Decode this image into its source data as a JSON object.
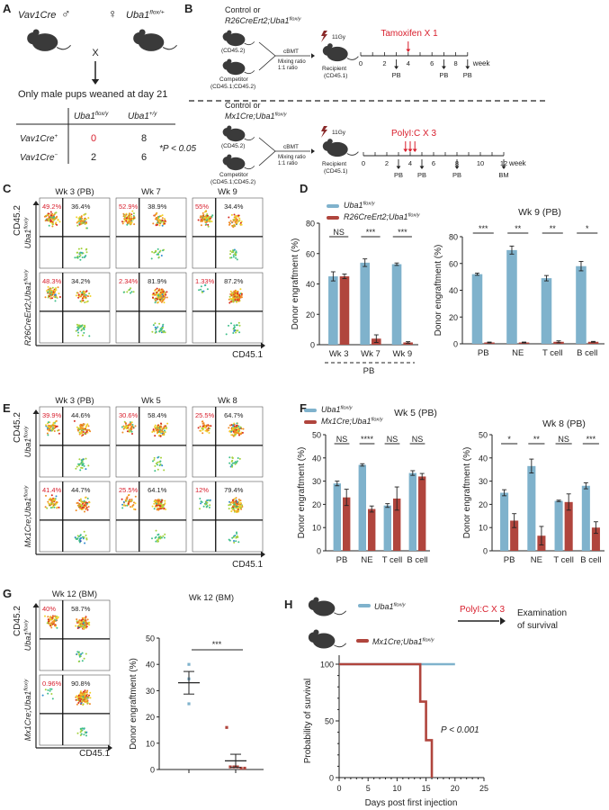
{
  "colors": {
    "control": "#7fb2cc",
    "mutant": "#b0453d",
    "highlight": "#d81e2c",
    "mouse": "#3a3a3a"
  },
  "panel_letters": [
    "A",
    "B",
    "C",
    "D",
    "E",
    "F",
    "G",
    "H"
  ],
  "panelA": {
    "male": {
      "base": "Vav1Cre",
      "sup": ""
    },
    "male_symbol": "♂",
    "female_symbol": "♀",
    "female": {
      "base": "Uba1",
      "sup": "flox/+"
    },
    "cross": "X",
    "note": "Only male pups weaned at day 21",
    "col_headers": [
      {
        "base": "Uba1",
        "sup": "flox/y"
      },
      {
        "base": "Uba1",
        "sup": "+/y"
      }
    ],
    "row_headers": [
      {
        "base": "Vav1Cre",
        "sup": "+"
      },
      {
        "base": "Vav1Cre",
        "sup": "−"
      }
    ],
    "cells": [
      [
        "0",
        "8"
      ],
      [
        "2",
        "6"
      ]
    ],
    "pvalue": "*P < 0.05"
  },
  "panelB": {
    "top": {
      "line1": "Control or",
      "genotype": {
        "base": "R26CreErt2;Uba1",
        "sup": "flox/y"
      },
      "donor": "(CD45.2)",
      "competitor": "Competitor",
      "competitor_cd": "(CD45.1;CD45.2)",
      "cbmt": "cBMT",
      "mixing1": "Mixing ratio",
      "mixing2": "1:1 ratio",
      "irradiation": "11Gy",
      "recipient": "Recipient",
      "recipient_cd": "(CD45.1)",
      "treatment": "Tamoxifen X 1",
      "tick_labels": [
        "0",
        "2",
        "4",
        "6",
        "8"
      ],
      "unit": "week",
      "sample_labels": [
        "PB",
        "PB",
        "PB"
      ]
    },
    "bottom": {
      "line1": "Control or",
      "genotype": {
        "base": "Mx1Cre;Uba1",
        "sup": "flox/y"
      },
      "donor": "(CD45.2)",
      "competitor": "Competitor",
      "competitor_cd": "(CD45.1;CD45.2)",
      "cbmt": "cBMT",
      "mixing1": "Mixing ratio",
      "mixing2": "1:1 ratio",
      "irradiation": "11Gy",
      "recipient": "Recipient",
      "recipient_cd": "(CD45.1)",
      "treatment": "PolyI:C X 3",
      "tick_labels": [
        "0",
        "2",
        "4",
        "6",
        "8",
        "10",
        "12"
      ],
      "unit": "week",
      "sample_labels": [
        "PB",
        "PB",
        "PB",
        "BM"
      ]
    }
  },
  "flow": {
    "y_axis": "CD45.2",
    "x_axis": "CD45.1",
    "C": {
      "columns": [
        "Wk 3 (PB)",
        "Wk 7",
        "Wk 9"
      ],
      "rows": [
        {
          "label": {
            "base": "Uba1",
            "sup": "flox/y"
          },
          "plots": [
            [
              "49.2%",
              "36.4%"
            ],
            [
              "52.9%",
              "38.9%"
            ],
            [
              "55%",
              "34.4%"
            ]
          ]
        },
        {
          "label": {
            "base": "R26CreErt2;Uba1",
            "sup": "flox/y"
          },
          "plots": [
            [
              "48.3%",
              "34.2%"
            ],
            [
              "2.34%",
              "81.9%"
            ],
            [
              "1.33%",
              "87.2%"
            ]
          ]
        }
      ]
    },
    "E": {
      "columns": [
        "Wk 3 (PB)",
        "Wk 5",
        "Wk 8"
      ],
      "rows": [
        {
          "label": {
            "base": "Uba1",
            "sup": "flox/y"
          },
          "plots": [
            [
              "39.9%",
              "44.6%"
            ],
            [
              "30.6%",
              "58.4%"
            ],
            [
              "25.5%",
              "64.7%"
            ]
          ]
        },
        {
          "label": {
            "base": "Mx1Cre;Uba1",
            "sup": "flox/y"
          },
          "plots": [
            [
              "41.4%",
              "44.7%"
            ],
            [
              "25.5%",
              "64.1%"
            ],
            [
              "12%",
              "79.4%"
            ]
          ]
        }
      ]
    },
    "G": {
      "columns": [
        "Wk 12 (BM)"
      ],
      "rows": [
        {
          "label": {
            "base": "Uba1",
            "sup": "flox/y"
          },
          "plots": [
            [
              "40%",
              "58.7%"
            ]
          ]
        },
        {
          "label": {
            "base": "Mx1Cre;Uba1",
            "sup": "flox/y"
          },
          "plots": [
            [
              "0.96%",
              "90.8%"
            ]
          ]
        }
      ]
    }
  },
  "chart_data": [
    {
      "id": "D-left",
      "type": "bar",
      "title": "",
      "legend": [
        {
          "base": "Uba1",
          "sup": "flox/y"
        },
        {
          "base": "R26CreErt2;Uba1",
          "sup": "flox/y"
        }
      ],
      "categories": [
        "Wk 3",
        "Wk 7",
        "Wk 9"
      ],
      "group_label": "PB",
      "series": [
        {
          "name": "Uba1 flox/y",
          "values": [
            45,
            54,
            53
          ],
          "sem": [
            3,
            2.5,
            0.8
          ]
        },
        {
          "name": "R26CreErt2;Uba1 flox/y",
          "values": [
            45,
            4,
            1.5
          ],
          "sem": [
            1.5,
            2.5,
            0.5
          ]
        }
      ],
      "significance": [
        "NS",
        "***",
        "***"
      ],
      "ylabel": "Donor engraftment (%)",
      "ylim": [
        0,
        80
      ],
      "yticks": [
        "0",
        "20",
        "40",
        "60",
        "80"
      ]
    },
    {
      "id": "D-right",
      "type": "bar",
      "title": "Wk 9 (PB)",
      "categories": [
        "PB",
        "NE",
        "T cell",
        "B cell"
      ],
      "series": [
        {
          "name": "Uba1 flox/y",
          "values": [
            52,
            70,
            49,
            58
          ],
          "sem": [
            0.8,
            3,
            2,
            3.5
          ]
        },
        {
          "name": "R26CreErt2;Uba1 flox/y",
          "values": [
            1,
            1,
            1.5,
            1.5
          ],
          "sem": [
            0.3,
            0.3,
            0.7,
            0.3
          ]
        }
      ],
      "significance": [
        "***",
        "**",
        "**",
        "*"
      ],
      "ylabel": "Donor engraftment (%)",
      "ylim": [
        0,
        80
      ],
      "yticks": [
        "0",
        "20",
        "40",
        "60",
        "80"
      ]
    },
    {
      "id": "F-left",
      "type": "bar",
      "title": "Wk 5 (PB)",
      "legend": [
        {
          "base": "Uba1",
          "sup": "flox/y"
        },
        {
          "base": "Mx1Cre;Uba1",
          "sup": "flox/y"
        }
      ],
      "categories": [
        "PB",
        "NE",
        "T cell",
        "B cell"
      ],
      "series": [
        {
          "name": "Uba1 flox/y",
          "values": [
            29,
            37,
            19.5,
            33.5
          ],
          "sem": [
            1,
            0.5,
            0.8,
            1
          ]
        },
        {
          "name": "Mx1Cre;Uba1 flox/y",
          "values": [
            23,
            18,
            22.5,
            32
          ],
          "sem": [
            3.5,
            1.3,
            5,
            1.3
          ]
        }
      ],
      "significance": [
        "NS",
        "****",
        "NS",
        "NS"
      ],
      "ylabel": "Donor engraftment (%)",
      "ylim": [
        0,
        50
      ],
      "yticks": [
        "0",
        "10",
        "20",
        "30",
        "40",
        "50"
      ]
    },
    {
      "id": "F-right",
      "type": "bar",
      "title": "Wk 8 (PB)",
      "categories": [
        "PB",
        "NE",
        "T cell",
        "B cell"
      ],
      "series": [
        {
          "name": "Uba1 flox/y",
          "values": [
            25,
            36.5,
            21.5,
            28
          ],
          "sem": [
            1.3,
            3,
            0.3,
            1.3
          ]
        },
        {
          "name": "Mx1Cre;Uba1 flox/y",
          "values": [
            13,
            6.5,
            21,
            10
          ],
          "sem": [
            3,
            4,
            3.5,
            2.5
          ]
        }
      ],
      "significance": [
        "*",
        "**",
        "NS",
        "***"
      ],
      "ylabel": "Donor engraftment (%)",
      "ylim": [
        0,
        50
      ],
      "yticks": [
        "0",
        "10",
        "20",
        "30",
        "40",
        "50"
      ]
    },
    {
      "id": "G",
      "type": "scatter",
      "title": "Wk 12 (BM)",
      "groups": [
        {
          "name": "Uba1 flox/y",
          "points": [
            40,
            34.5,
            25
          ],
          "mean": 33,
          "sem": 4.3
        },
        {
          "name": "Mx1Cre;Uba1 flox/y",
          "points": [
            16,
            1,
            1,
            1,
            0.5,
            0.5
          ],
          "mean": 3.3,
          "sem": 2.5
        }
      ],
      "significance": "***",
      "ylabel": "Donor engraftment (%)",
      "ylim": [
        0,
        50
      ],
      "yticks": [
        "0",
        "10",
        "20",
        "30",
        "40",
        "50"
      ]
    },
    {
      "id": "H",
      "type": "line",
      "title": "",
      "legend": [
        {
          "base": "Uba1",
          "sup": "flox/y"
        },
        {
          "base": "Mx1Cre;Uba1",
          "sup": "flox/y"
        }
      ],
      "treatment": "PolyI:C X 3",
      "outcome1": "Examination",
      "outcome2": "of survival",
      "series": [
        {
          "name": "Uba1 flox/y",
          "x": [
            0,
            20
          ],
          "y": [
            100,
            100
          ]
        },
        {
          "name": "Mx1Cre;Uba1 flox/y",
          "x": [
            0,
            14,
            14,
            15,
            15,
            16,
            16
          ],
          "y": [
            100,
            100,
            67,
            67,
            33,
            33,
            0
          ]
        }
      ],
      "annotation": "P < 0.001",
      "xlabel": "Days post first injection",
      "ylabel": "Probability of survival",
      "xlim": [
        0,
        25
      ],
      "ylim": [
        0,
        100
      ],
      "xticks": [
        "0",
        "5",
        "10",
        "15",
        "20",
        "25"
      ],
      "yticks": [
        "0",
        "50",
        "100"
      ]
    }
  ]
}
